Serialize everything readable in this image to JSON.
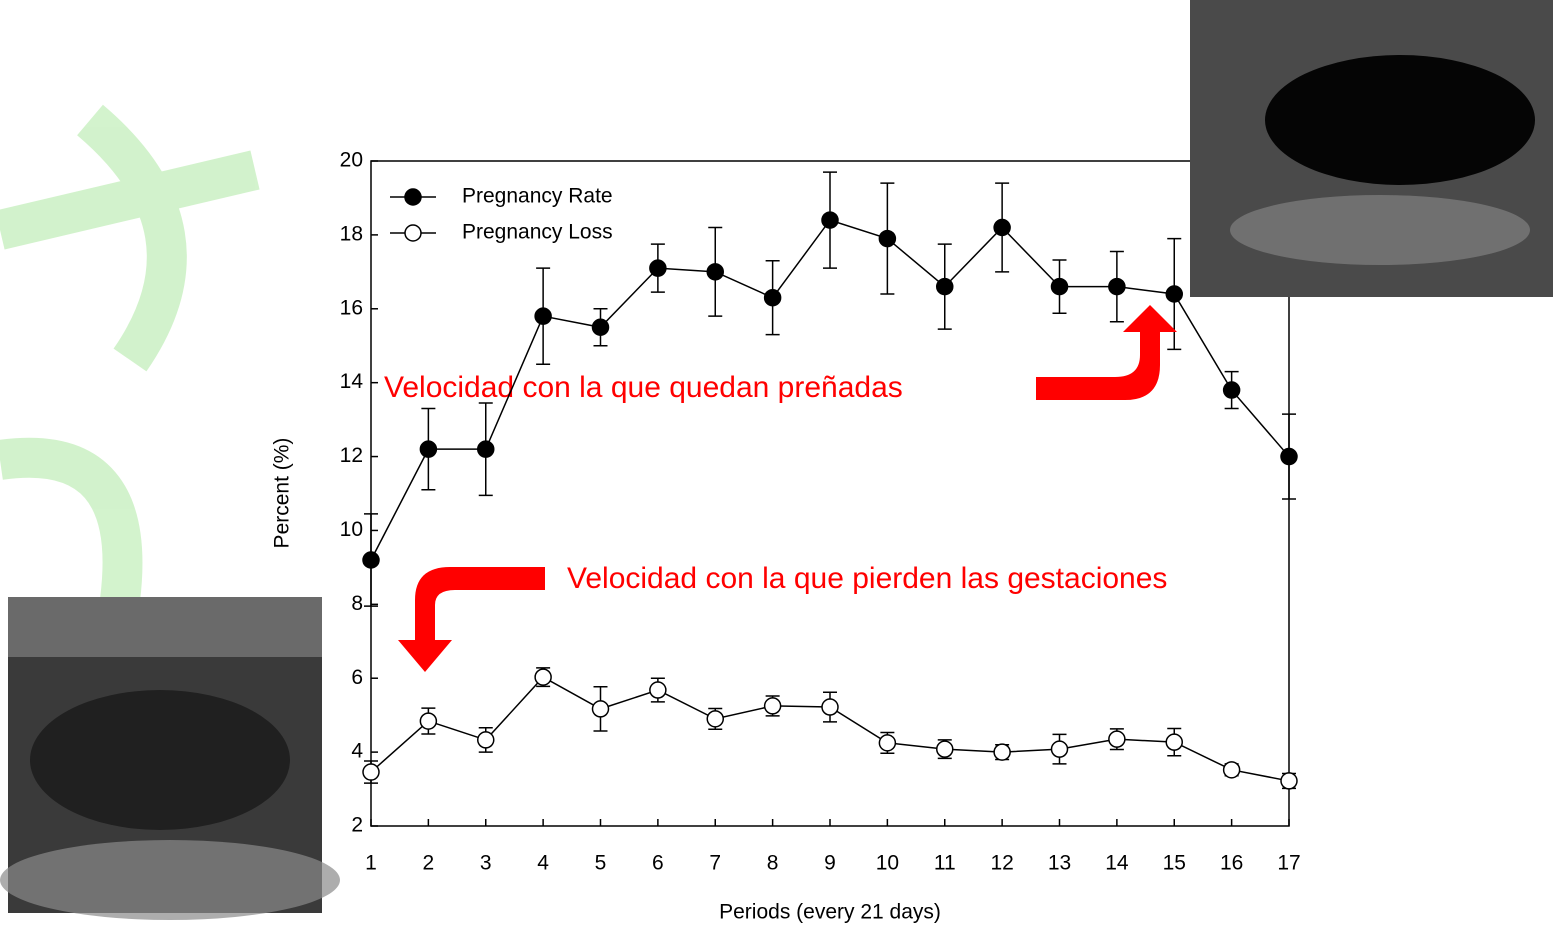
{
  "chart_data": {
    "type": "line",
    "x_label": "Periods (every 21 days)",
    "y_label": "Percent (%)",
    "x": [
      1,
      2,
      3,
      4,
      5,
      6,
      7,
      8,
      9,
      10,
      11,
      12,
      13,
      14,
      15,
      16,
      17
    ],
    "xlim": [
      1,
      17
    ],
    "xticks": [
      1,
      2,
      3,
      4,
      5,
      6,
      7,
      8,
      9,
      10,
      11,
      12,
      13,
      14,
      15,
      16,
      17
    ],
    "ylim": [
      2,
      20
    ],
    "yticks": [
      2,
      4,
      6,
      8,
      10,
      12,
      14,
      16,
      18,
      20
    ],
    "series": [
      {
        "name": "Pregnancy Rate",
        "color": "#000000",
        "marker": "filled",
        "values": [
          9.2,
          12.2,
          12.2,
          15.8,
          15.5,
          17.1,
          17.0,
          16.3,
          18.4,
          17.9,
          16.6,
          18.2,
          16.6,
          16.6,
          16.4,
          13.8,
          12.0
        ],
        "errors": [
          1.25,
          1.1,
          1.25,
          1.3,
          0.5,
          0.65,
          1.2,
          1.0,
          1.3,
          1.5,
          1.15,
          1.2,
          0.72,
          0.95,
          1.5,
          0.5,
          1.15
        ]
      },
      {
        "name": "Pregnancy Loss",
        "color": "#000000",
        "marker": "open",
        "values": [
          3.46,
          4.84,
          4.33,
          6.03,
          5.17,
          5.68,
          4.9,
          5.25,
          5.22,
          4.25,
          4.08,
          4.0,
          4.08,
          4.35,
          4.27,
          3.52,
          3.22
        ],
        "errors": [
          0.3,
          0.35,
          0.33,
          0.25,
          0.6,
          0.32,
          0.28,
          0.27,
          0.4,
          0.28,
          0.25,
          0.2,
          0.4,
          0.28,
          0.37,
          0.16,
          0.2
        ]
      }
    ],
    "annotations": [
      "Velocidad con la que quedan preñadas",
      "Velocidad con la que pierden las gestaciones"
    ],
    "annotation_color": "#ff0000"
  }
}
